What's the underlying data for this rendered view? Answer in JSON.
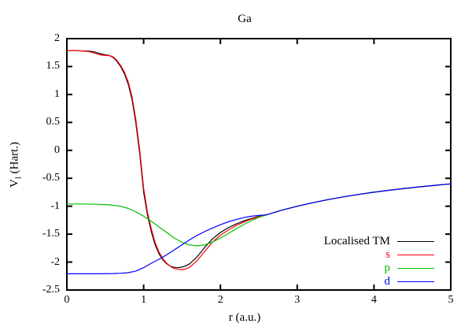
{
  "chart_data": {
    "type": "line",
    "title": "Ga",
    "xlabel": "r (a.u.)",
    "ylabel": "V_l (Hart.)",
    "ylabel_parts": {
      "prefix": "V",
      "sub": "l",
      "suffix": " (Hart.)"
    },
    "xlim": [
      0,
      5
    ],
    "ylim": [
      -2.5,
      2
    ],
    "xticks": [
      0,
      1,
      2,
      3,
      4,
      5
    ],
    "yticks": [
      2,
      1.5,
      1,
      0.5,
      0,
      -0.5,
      -1,
      -1.5,
      -2,
      -2.5
    ],
    "grid": false,
    "legend_position": "inside-bottom-right",
    "frame_color": "#000000",
    "background_color": "#ffffff",
    "series": [
      {
        "name": "Localised TM",
        "color": "#000000",
        "points": [
          [
            0,
            1.785
          ],
          [
            0.1,
            1.785
          ],
          [
            0.2,
            1.78
          ],
          [
            0.3,
            1.775
          ],
          [
            0.35,
            1.765
          ],
          [
            0.4,
            1.745
          ],
          [
            0.45,
            1.725
          ],
          [
            0.5,
            1.71
          ],
          [
            0.55,
            1.7
          ],
          [
            0.6,
            1.665
          ],
          [
            0.65,
            1.6
          ],
          [
            0.7,
            1.5
          ],
          [
            0.75,
            1.37
          ],
          [
            0.8,
            1.18
          ],
          [
            0.85,
            0.9
          ],
          [
            0.9,
            0.48
          ],
          [
            0.95,
            -0.07
          ],
          [
            1.0,
            -0.75
          ],
          [
            1.05,
            -1.16
          ],
          [
            1.1,
            -1.46
          ],
          [
            1.15,
            -1.69
          ],
          [
            1.2,
            -1.85
          ],
          [
            1.25,
            -1.96
          ],
          [
            1.3,
            -2.03
          ],
          [
            1.35,
            -2.075
          ],
          [
            1.4,
            -2.095
          ],
          [
            1.45,
            -2.1
          ],
          [
            1.5,
            -2.09
          ],
          [
            1.55,
            -2.065
          ],
          [
            1.6,
            -2.03
          ],
          [
            1.7,
            -1.9
          ],
          [
            1.8,
            -1.73
          ],
          [
            1.9,
            -1.58
          ],
          [
            2.0,
            -1.47
          ],
          [
            2.1,
            -1.385
          ],
          [
            2.2,
            -1.32
          ],
          [
            2.3,
            -1.265
          ],
          [
            2.4,
            -1.22
          ],
          [
            2.5,
            -1.183
          ],
          [
            2.6,
            -1.154
          ],
          [
            2.8,
            -1.071
          ],
          [
            3.0,
            -1.0
          ],
          [
            3.2,
            -0.938
          ],
          [
            3.4,
            -0.882
          ],
          [
            3.6,
            -0.833
          ],
          [
            3.8,
            -0.789
          ],
          [
            4.0,
            -0.75
          ],
          [
            4.2,
            -0.714
          ],
          [
            4.4,
            -0.682
          ],
          [
            4.6,
            -0.652
          ],
          [
            4.8,
            -0.625
          ],
          [
            5.0,
            -0.6
          ]
        ]
      },
      {
        "name": "s",
        "color": "#ff0000",
        "points": [
          [
            0,
            1.785
          ],
          [
            0.1,
            1.785
          ],
          [
            0.2,
            1.78
          ],
          [
            0.3,
            1.765
          ],
          [
            0.35,
            1.745
          ],
          [
            0.4,
            1.72
          ],
          [
            0.45,
            1.705
          ],
          [
            0.5,
            1.7
          ],
          [
            0.55,
            1.695
          ],
          [
            0.6,
            1.675
          ],
          [
            0.65,
            1.615
          ],
          [
            0.7,
            1.52
          ],
          [
            0.75,
            1.4
          ],
          [
            0.8,
            1.22
          ],
          [
            0.85,
            0.95
          ],
          [
            0.9,
            0.54
          ],
          [
            0.95,
            0.0
          ],
          [
            1.0,
            -0.68
          ],
          [
            1.05,
            -1.11
          ],
          [
            1.1,
            -1.41
          ],
          [
            1.15,
            -1.65
          ],
          [
            1.2,
            -1.82
          ],
          [
            1.25,
            -1.94
          ],
          [
            1.3,
            -2.02
          ],
          [
            1.35,
            -2.08
          ],
          [
            1.4,
            -2.115
          ],
          [
            1.45,
            -2.13
          ],
          [
            1.5,
            -2.135
          ],
          [
            1.55,
            -2.12
          ],
          [
            1.6,
            -2.09
          ],
          [
            1.7,
            -1.97
          ],
          [
            1.8,
            -1.8
          ],
          [
            1.9,
            -1.64
          ],
          [
            2.0,
            -1.52
          ],
          [
            2.1,
            -1.43
          ],
          [
            2.2,
            -1.35
          ],
          [
            2.3,
            -1.285
          ],
          [
            2.4,
            -1.23
          ],
          [
            2.5,
            -1.19
          ],
          [
            2.6,
            -1.154
          ],
          [
            2.8,
            -1.071
          ],
          [
            3.0,
            -1.0
          ],
          [
            3.2,
            -0.938
          ],
          [
            3.4,
            -0.882
          ],
          [
            3.6,
            -0.833
          ],
          [
            3.8,
            -0.789
          ],
          [
            4.0,
            -0.75
          ],
          [
            4.2,
            -0.714
          ],
          [
            4.4,
            -0.682
          ],
          [
            4.6,
            -0.652
          ],
          [
            4.8,
            -0.625
          ],
          [
            5.0,
            -0.6
          ]
        ]
      },
      {
        "name": "p",
        "color": "#00c000",
        "points": [
          [
            0,
            -0.96
          ],
          [
            0.2,
            -0.96
          ],
          [
            0.4,
            -0.965
          ],
          [
            0.55,
            -0.975
          ],
          [
            0.7,
            -1.0
          ],
          [
            0.8,
            -1.04
          ],
          [
            0.9,
            -1.1
          ],
          [
            1.0,
            -1.18
          ],
          [
            1.1,
            -1.27
          ],
          [
            1.2,
            -1.37
          ],
          [
            1.3,
            -1.47
          ],
          [
            1.4,
            -1.57
          ],
          [
            1.5,
            -1.645
          ],
          [
            1.6,
            -1.695
          ],
          [
            1.7,
            -1.71
          ],
          [
            1.8,
            -1.69
          ],
          [
            1.9,
            -1.64
          ],
          [
            2.0,
            -1.57
          ],
          [
            2.1,
            -1.49
          ],
          [
            2.2,
            -1.41
          ],
          [
            2.3,
            -1.33
          ],
          [
            2.4,
            -1.26
          ],
          [
            2.5,
            -1.2
          ],
          [
            2.6,
            -1.155
          ],
          [
            2.8,
            -1.071
          ],
          [
            3.0,
            -1.0
          ],
          [
            3.2,
            -0.938
          ],
          [
            3.4,
            -0.882
          ],
          [
            3.6,
            -0.833
          ],
          [
            3.8,
            -0.789
          ],
          [
            4.0,
            -0.75
          ],
          [
            4.2,
            -0.714
          ],
          [
            4.4,
            -0.682
          ],
          [
            4.6,
            -0.652
          ],
          [
            4.8,
            -0.625
          ],
          [
            5.0,
            -0.6
          ]
        ]
      },
      {
        "name": "d",
        "color": "#0000ff",
        "points": [
          [
            0,
            -2.21
          ],
          [
            0.2,
            -2.21
          ],
          [
            0.4,
            -2.21
          ],
          [
            0.6,
            -2.205
          ],
          [
            0.7,
            -2.2
          ],
          [
            0.8,
            -2.19
          ],
          [
            0.9,
            -2.16
          ],
          [
            1.0,
            -2.1
          ],
          [
            1.1,
            -2.02
          ],
          [
            1.2,
            -1.95
          ],
          [
            1.3,
            -1.87
          ],
          [
            1.4,
            -1.78
          ],
          [
            1.5,
            -1.69
          ],
          [
            1.6,
            -1.6
          ],
          [
            1.7,
            -1.52
          ],
          [
            1.8,
            -1.45
          ],
          [
            1.9,
            -1.39
          ],
          [
            2.0,
            -1.33
          ],
          [
            2.1,
            -1.28
          ],
          [
            2.2,
            -1.24
          ],
          [
            2.3,
            -1.205
          ],
          [
            2.4,
            -1.18
          ],
          [
            2.5,
            -1.165
          ],
          [
            2.6,
            -1.154
          ],
          [
            2.8,
            -1.071
          ],
          [
            3.0,
            -1.0
          ],
          [
            3.2,
            -0.938
          ],
          [
            3.4,
            -0.882
          ],
          [
            3.6,
            -0.833
          ],
          [
            3.8,
            -0.789
          ],
          [
            4.0,
            -0.75
          ],
          [
            4.2,
            -0.714
          ],
          [
            4.4,
            -0.682
          ],
          [
            4.6,
            -0.652
          ],
          [
            4.8,
            -0.625
          ],
          [
            5.0,
            -0.6
          ]
        ]
      }
    ]
  }
}
